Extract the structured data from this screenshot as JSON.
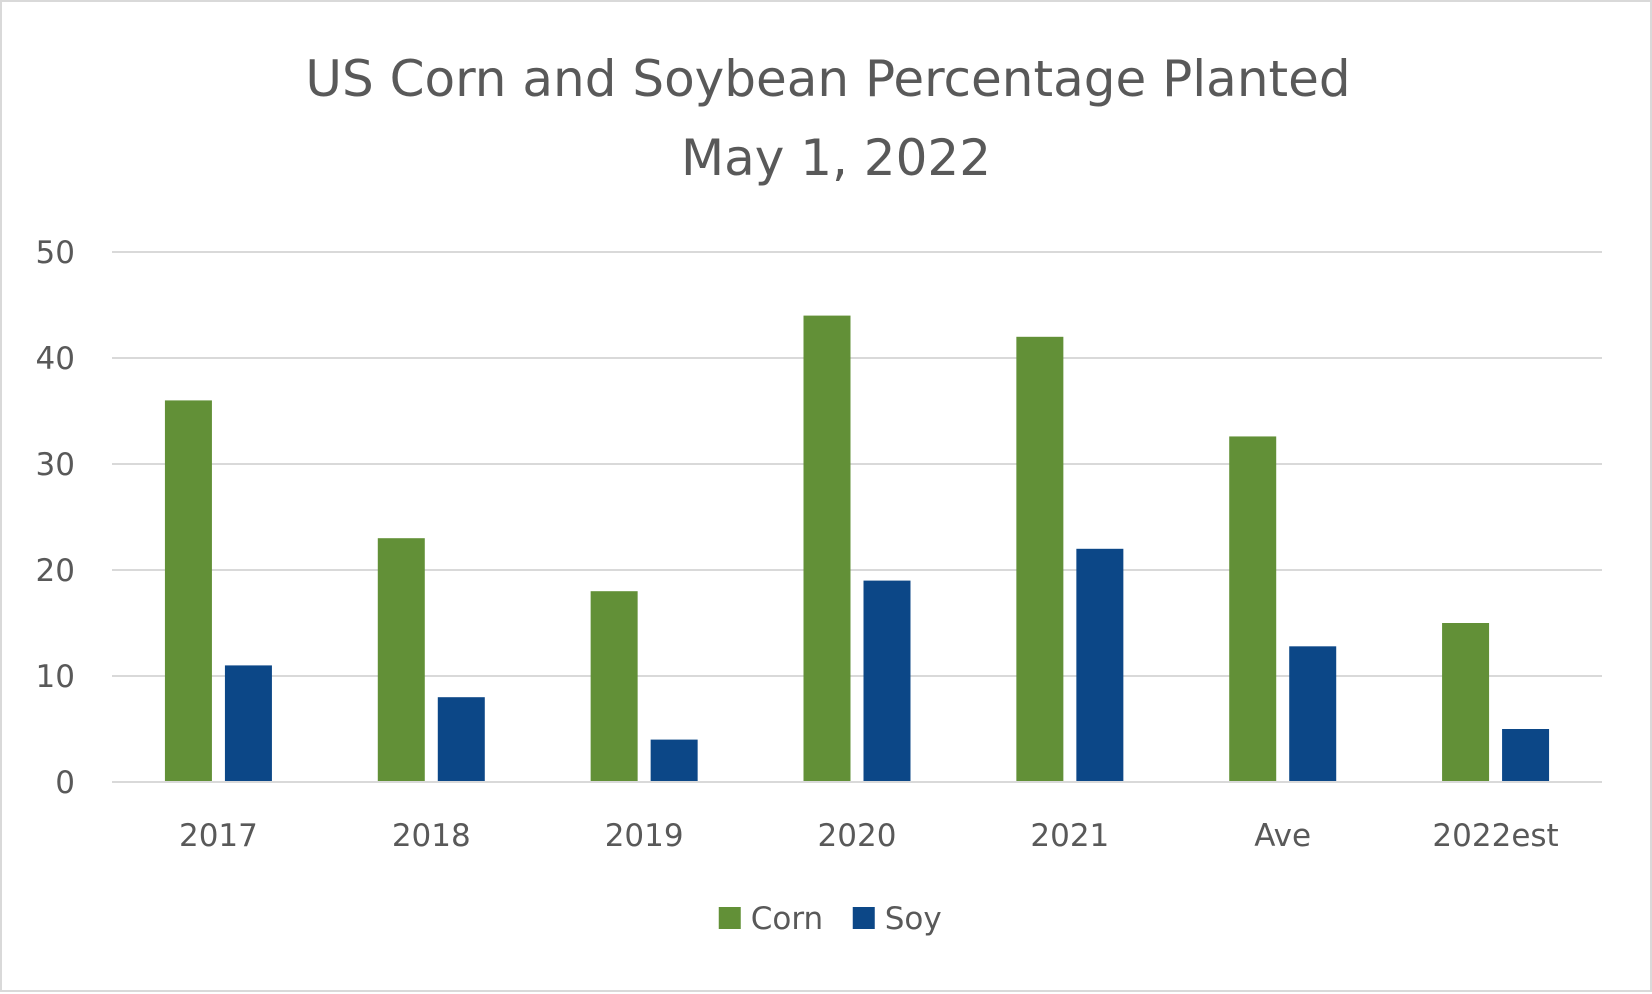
{
  "chart_data": {
    "type": "bar",
    "title": "US Corn and Soybean Percentage Planted",
    "subtitle": "May 1, 2022",
    "xlabel": "",
    "ylabel": "",
    "categories": [
      "2017",
      "2018",
      "2019",
      "2020",
      "2021",
      "Ave",
      "2022est"
    ],
    "series": [
      {
        "name": "Corn",
        "color": "#629037",
        "values": [
          36,
          23,
          18,
          44,
          42,
          32.6,
          15
        ]
      },
      {
        "name": "Soy",
        "color": "#0c4787",
        "values": [
          11,
          8,
          4,
          19,
          22,
          12.8,
          5
        ]
      }
    ],
    "ylim": [
      0,
      50
    ],
    "yticks": [
      0,
      10,
      20,
      30,
      40,
      50
    ],
    "ytick_labels": [
      "0",
      "10",
      "20",
      "30",
      "40",
      "50"
    ],
    "grid": true,
    "grid_color": "#d9d9d9",
    "legend": "bottom"
  }
}
